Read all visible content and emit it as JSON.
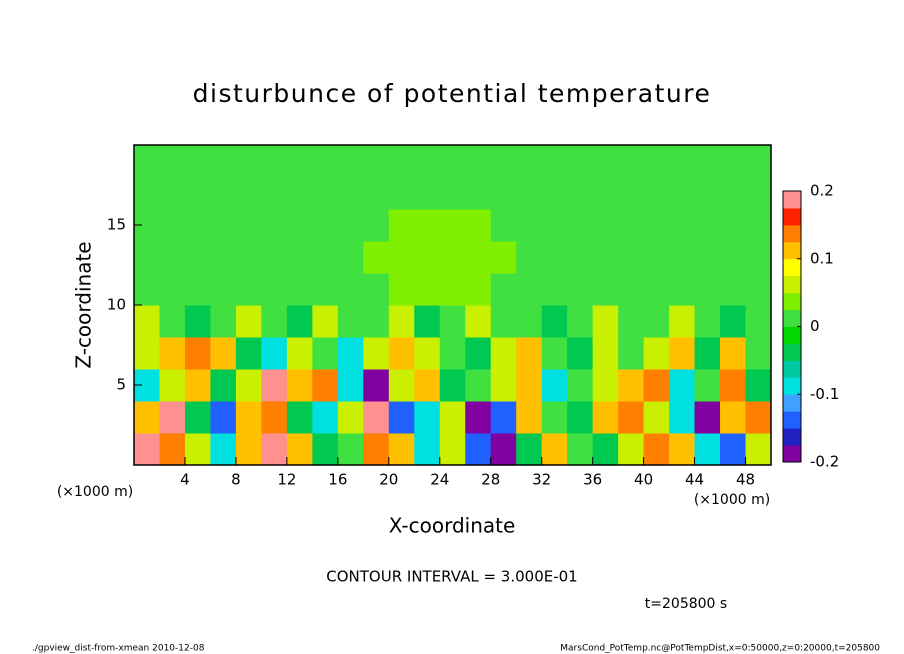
{
  "chart_data": {
    "type": "heatmap",
    "title": "disturbunce of potential temperature",
    "xlabel": "X-coordinate",
    "ylabel": "Z-coordinate",
    "x_unit": "(×1000 m)",
    "annotations": [
      "CONTOUR INTERVAL = 3.000E-01",
      "t=205800 s"
    ],
    "footer_left": "./gpview_dist-from-xmean  2010-12-08",
    "footer_right": "MarsCond_PotTemp.nc@PotTempDist,x=0:50000,z=0:20000,t=205800",
    "x": [
      1,
      3,
      5,
      7,
      9,
      11,
      13,
      15,
      17,
      19,
      21,
      23,
      25,
      27,
      29,
      31,
      33,
      35,
      37,
      39,
      41,
      43,
      45,
      47,
      49
    ],
    "y": [
      1,
      3,
      5,
      7,
      9,
      11,
      13,
      15,
      17,
      19
    ],
    "z": [
      [
        0.2,
        0.15,
        0.05,
        -0.1,
        0.1,
        0.2,
        0.1,
        -0.05,
        0.0,
        0.15,
        0.1,
        -0.1,
        0.05,
        -0.15,
        -0.2,
        -0.05,
        0.1,
        0.0,
        -0.05,
        0.05,
        0.15,
        0.1,
        -0.1,
        -0.15,
        0.05
      ],
      [
        0.1,
        0.2,
        -0.05,
        -0.15,
        0.1,
        0.15,
        -0.05,
        -0.1,
        0.05,
        0.2,
        -0.15,
        -0.1,
        0.05,
        -0.2,
        -0.15,
        0.1,
        0.0,
        -0.05,
        0.1,
        0.15,
        0.05,
        -0.1,
        -0.2,
        0.1,
        0.15
      ],
      [
        -0.1,
        0.05,
        0.1,
        -0.05,
        0.05,
        0.2,
        0.1,
        0.15,
        -0.1,
        -0.2,
        0.05,
        0.1,
        -0.05,
        0.0,
        0.05,
        0.1,
        -0.1,
        0.0,
        0.05,
        0.1,
        0.15,
        -0.1,
        0.0,
        0.15,
        -0.05
      ],
      [
        0.05,
        0.1,
        0.15,
        0.1,
        -0.05,
        -0.1,
        0.05,
        0.0,
        -0.1,
        0.05,
        0.1,
        0.05,
        0.0,
        -0.05,
        0.05,
        0.1,
        0.0,
        -0.05,
        0.05,
        0.0,
        0.05,
        0.1,
        -0.05,
        0.1,
        0.0
      ],
      [
        0.05,
        0.0,
        -0.05,
        0.0,
        0.05,
        0.0,
        -0.05,
        0.05,
        0.0,
        0.0,
        0.05,
        -0.05,
        0.0,
        0.05,
        0.0,
        0.0,
        -0.05,
        0.0,
        0.05,
        0.0,
        0.0,
        0.05,
        0.0,
        -0.05,
        0.0
      ],
      [
        0.0,
        0.0,
        0.0,
        0.0,
        0.0,
        0.0,
        0.0,
        0.0,
        0.0,
        0.0,
        0.025,
        0.025,
        0.025,
        0.025,
        0.0,
        0.0,
        0.0,
        0.0,
        0.0,
        0.0,
        0.0,
        0.0,
        0.0,
        0.0,
        0.0
      ],
      [
        0.0,
        0.0,
        0.0,
        0.0,
        0.0,
        0.0,
        0.0,
        0.0,
        0.0,
        0.025,
        0.025,
        0.025,
        0.025,
        0.025,
        0.025,
        0.0,
        0.0,
        0.0,
        0.0,
        0.0,
        0.0,
        0.0,
        0.0,
        0.0,
        0.0
      ],
      [
        0.0,
        0.0,
        0.0,
        0.0,
        0.0,
        0.0,
        0.0,
        0.0,
        0.0,
        0.0,
        0.025,
        0.025,
        0.025,
        0.025,
        0.0,
        0.0,
        0.0,
        0.0,
        0.0,
        0.0,
        0.0,
        0.0,
        0.0,
        0.0,
        0.0
      ],
      [
        0.0,
        0.0,
        0.0,
        0.0,
        0.0,
        0.0,
        0.0,
        0.0,
        0.0,
        0.0,
        0.0,
        0.0,
        0.0,
        0.0,
        0.0,
        0.0,
        0.0,
        0.0,
        0.0,
        0.0,
        0.0,
        0.0,
        0.0,
        0.0,
        0.0
      ],
      [
        0.0,
        0.0,
        0.0,
        0.0,
        0.0,
        0.0,
        0.0,
        0.0,
        0.0,
        0.0,
        0.0,
        0.0,
        0.0,
        0.0,
        0.0,
        0.0,
        0.0,
        0.0,
        0.0,
        0.0,
        0.0,
        0.0,
        0.0,
        0.0,
        0.0
      ]
    ],
    "xlim": [
      0,
      50
    ],
    "ylim": [
      0,
      20
    ],
    "xticks": [
      4,
      8,
      12,
      16,
      20,
      24,
      28,
      32,
      36,
      40,
      44,
      48
    ],
    "yticks": [
      5,
      10,
      15
    ],
    "zlim": [
      -0.2,
      0.2
    ],
    "zticks": [
      0.2,
      0.1,
      0,
      -0.1,
      -0.2
    ],
    "colors": [
      "#8000a0",
      "#2020c0",
      "#2060ff",
      "#40a0ff",
      "#00e0e0",
      "#00c8a0",
      "#00c850",
      "#00d800",
      "#40e040",
      "#80f000",
      "#c8f000",
      "#ffff00",
      "#ffc000",
      "#ff8000",
      "#ff2000",
      "#ff9090"
    ]
  }
}
